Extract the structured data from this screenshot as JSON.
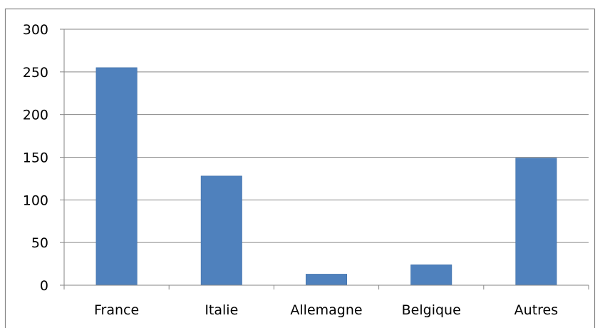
{
  "chart_data": {
    "type": "bar",
    "categories": [
      "France",
      "Italie",
      "Allemagne",
      "Belgique",
      "Autres"
    ],
    "values": [
      255,
      128,
      13,
      24,
      149
    ],
    "title": "",
    "xlabel": "",
    "ylabel": "",
    "ylim": [
      0,
      300
    ],
    "yticks": [
      0,
      50,
      100,
      150,
      200,
      250,
      300
    ],
    "grid": true,
    "legend": "none"
  },
  "colors": {
    "bar": "#4f81bd",
    "bar_edge": "#3f6fa8",
    "grid": "#868686",
    "axis": "#868686",
    "frame": "#868686",
    "text": "#000000"
  }
}
